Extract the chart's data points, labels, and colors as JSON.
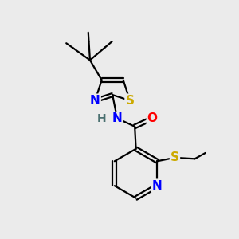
{
  "bg_color": "#ebebeb",
  "atom_colors": {
    "C": "#000000",
    "N": "#0000ff",
    "O": "#ff0000",
    "S": "#ccaa00",
    "H": "#4a7070"
  },
  "bond_color": "#000000",
  "bond_width": 1.6,
  "font_size_atom": 11,
  "font_size_small": 9
}
